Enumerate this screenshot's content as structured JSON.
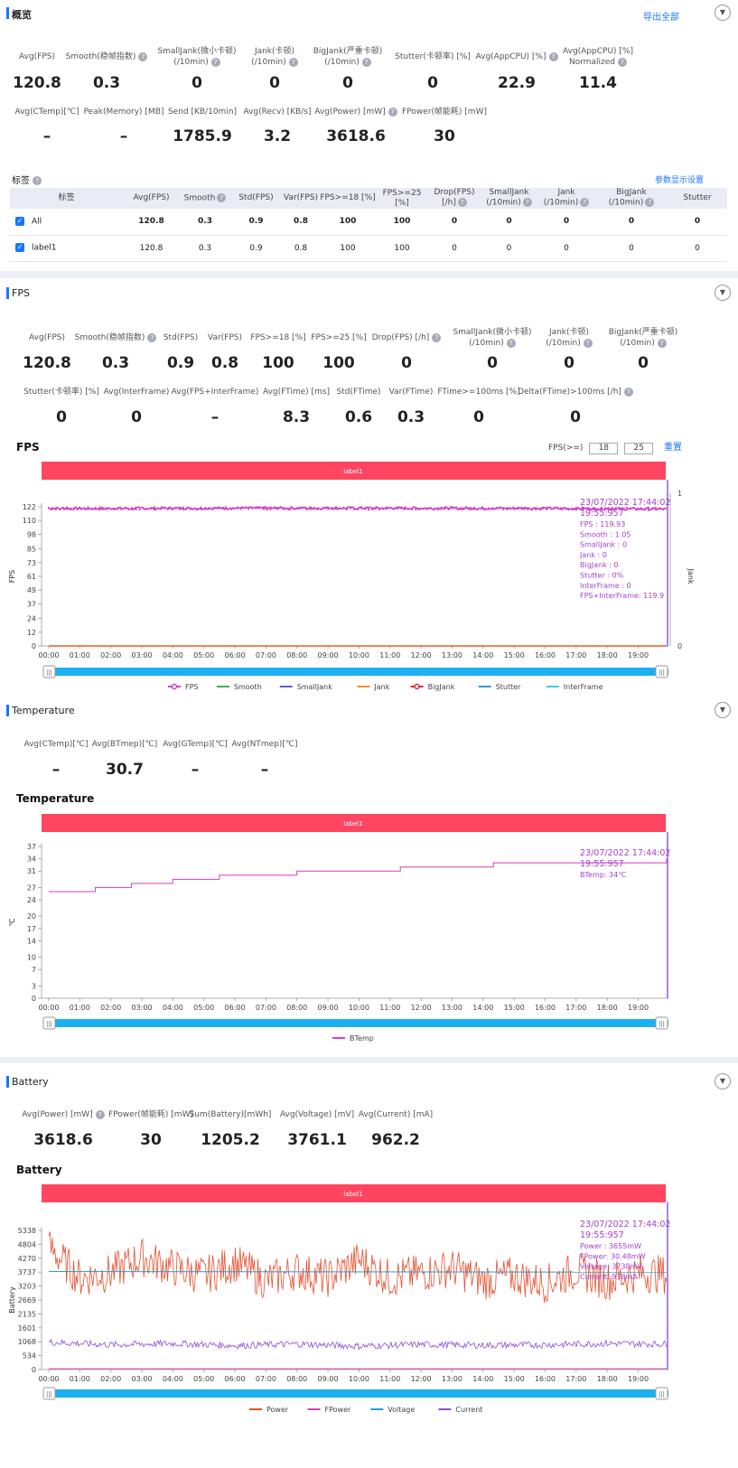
{
  "overview": {
    "title": "概览",
    "export_label": "导出全部",
    "metrics_row1": [
      {
        "label": "Avg(FPS)",
        "value": "120.8",
        "help": false
      },
      {
        "label": "Smooth(稳帧指数)",
        "value": "0.3",
        "help": true
      },
      {
        "label": "SmallJank(微小卡顿)\n(/10min)",
        "value": "0",
        "help": true
      },
      {
        "label": "Jank(卡顿)\n(/10min)",
        "value": "0",
        "help": true
      },
      {
        "label": "BigJank(严重卡顿)\n(/10min)",
        "value": "0",
        "help": true
      },
      {
        "label": "Stutter(卡顿率) [%]",
        "value": "0",
        "help": false
      },
      {
        "label": "Avg(AppCPU) [%]",
        "value": "22.9",
        "help": true
      },
      {
        "label": "Avg(AppCPU) [%]\nNormalized",
        "value": "11.4",
        "help": true
      }
    ],
    "metrics_row2": [
      {
        "label": "Avg(CTemp)[℃]",
        "value": "–",
        "help": false
      },
      {
        "label": "Peak(Memory) [MB]",
        "value": "–",
        "help": false
      },
      {
        "label": "Send [KB/10min]",
        "value": "1785.9",
        "help": false
      },
      {
        "label": "Avg(Recv) [KB/s]",
        "value": "3.2",
        "help": false
      },
      {
        "label": "Avg(Power) [mW]",
        "value": "3618.6",
        "help": true
      },
      {
        "label": "FPower(帧能耗) [mW]",
        "value": "30",
        "help": false
      }
    ]
  },
  "tags": {
    "title": "标签",
    "settings_label": "参数显示设置",
    "columns": [
      "标签",
      "Avg(FPS)",
      "Smooth",
      "Std(FPS)",
      "Var(FPS)",
      "FPS>=18 [%]",
      "FPS>=25 [%]",
      "Drop(FPS)\n[/h]",
      "SmallJank\n(/10min)",
      "Jank\n(/10min)",
      "BigJank\n(/10min)",
      "Stutter"
    ],
    "rows": [
      {
        "label": "All",
        "cells": [
          "120.8",
          "0.3",
          "0.9",
          "0.8",
          "100",
          "100",
          "0",
          "0",
          "0",
          "0",
          "0"
        ]
      },
      {
        "label": "label1",
        "cells": [
          "120.8",
          "0.3",
          "0.9",
          "0.8",
          "100",
          "100",
          "0",
          "0",
          "0",
          "0",
          "0"
        ]
      }
    ]
  },
  "fps": {
    "title": "FPS",
    "metrics_row1": [
      {
        "label": "Avg(FPS)",
        "value": "120.8",
        "help": false
      },
      {
        "label": "Smooth(稳帧指数)",
        "value": "0.3",
        "help": true
      },
      {
        "label": "Std(FPS)",
        "value": "0.9",
        "help": false
      },
      {
        "label": "Var(FPS)",
        "value": "0.8",
        "help": false
      },
      {
        "label": "FPS>=18 [%]",
        "value": "100",
        "help": false
      },
      {
        "label": "FPS>=25 [%]",
        "value": "100",
        "help": false
      },
      {
        "label": "Drop(FPS) [/h]",
        "value": "0",
        "help": true
      },
      {
        "label": "SmallJank(微小卡顿)\n(/10min)",
        "value": "0",
        "help": true
      },
      {
        "label": "Jank(卡顿)\n(/10min)",
        "value": "0",
        "help": true
      },
      {
        "label": "BigJank(严重卡顿)\n(/10min)",
        "value": "0",
        "help": true
      }
    ],
    "metrics_row2": [
      {
        "label": "Stutter(卡顿率) [%]",
        "value": "0",
        "help": false
      },
      {
        "label": "Avg(InterFrame)",
        "value": "0",
        "help": false
      },
      {
        "label": "Avg(FPS+InterFrame)",
        "value": "–",
        "help": false
      },
      {
        "label": "Avg(FTime) [ms]",
        "value": "8.3",
        "help": false
      },
      {
        "label": "Std(FTime)",
        "value": "0.6",
        "help": false
      },
      {
        "label": "Var(FTime)",
        "value": "0.3",
        "help": false
      },
      {
        "label": "FTime>=100ms [%]",
        "value": "0",
        "help": false
      },
      {
        "label": "Delta(FTime)>100ms [/h]",
        "value": "0",
        "help": true
      }
    ],
    "chart_title": "FPS",
    "filter_label": "FPS(>=)",
    "filter_values": [
      "18",
      "25"
    ],
    "reset_label": "重置",
    "band_label": "label1",
    "y_label": "FPS",
    "y2_label": "Jank",
    "y2_ticks": [
      "1",
      "0"
    ],
    "tooltip": [
      "23/07/2022 17:44:02",
      "19:55:957",
      "FPS          : 119.93",
      "Smooth       : 1.05",
      "SmallJank    : 0",
      "Jank         : 0",
      "BigJank      : 0",
      "Stutter      : 0%",
      "InterFrame   : 0",
      "FPS+InterFrame: 119.9"
    ],
    "legend": [
      {
        "name": "FPS",
        "color": "#d63fbe",
        "marker": true
      },
      {
        "name": "Smooth",
        "color": "#3cb44b",
        "marker": false
      },
      {
        "name": "SmallJank",
        "color": "#5b5fd6",
        "marker": false
      },
      {
        "name": "Jank",
        "color": "#f28e2b",
        "marker": false
      },
      {
        "name": "BigJank",
        "color": "#e0282e",
        "marker": true
      },
      {
        "name": "Stutter",
        "color": "#2e9bd6",
        "marker": false
      },
      {
        "name": "InterFrame",
        "color": "#3ed1d8",
        "marker": false
      }
    ]
  },
  "temperature": {
    "title": "Temperature",
    "metrics": [
      {
        "label": "Avg(CTemp)[℃]",
        "value": "–",
        "help": false
      },
      {
        "label": "Avg(BTmep)[℃]",
        "value": "30.7",
        "help": false
      },
      {
        "label": "Avg(GTemp)[℃]",
        "value": "–",
        "help": false
      },
      {
        "label": "Avg(NTmep)[℃]",
        "value": "–",
        "help": false
      }
    ],
    "chart_title": "Temperature",
    "band_label": "label1",
    "y_label": "℃",
    "tooltip": [
      "23/07/2022 17:44:02",
      "19:55:957",
      "BTemp: 34℃"
    ],
    "legend": [
      {
        "name": "BTemp",
        "color": "#d63fbe"
      }
    ]
  },
  "battery": {
    "title": "Battery",
    "metrics": [
      {
        "label": "Avg(Power) [mW]",
        "value": "3618.6",
        "help": true
      },
      {
        "label": "FPower(帧能耗) [mW]",
        "value": "30",
        "help": false
      },
      {
        "label": "Sum(Battery)[mWh]",
        "value": "1205.2",
        "help": false
      },
      {
        "label": "Avg(Voltage) [mV]",
        "value": "3761.1",
        "help": false
      },
      {
        "label": "Avg(Current) [mA]",
        "value": "962.2",
        "help": false
      }
    ],
    "chart_title": "Battery",
    "band_label": "label1",
    "y_label": "Battery",
    "tooltip": [
      "23/07/2022 17:44:02",
      "19:55:957",
      "Power   : 3655mW",
      "FPower: 30.48mW",
      "Voltage: 3738mV",
      "Current: 978mA"
    ],
    "legend": [
      {
        "name": "Power",
        "color": "#e8502e"
      },
      {
        "name": "FPower",
        "color": "#d63fbe"
      },
      {
        "name": "Voltage",
        "color": "#2e9bd6"
      },
      {
        "name": "Current",
        "color": "#8a4fd8"
      }
    ]
  },
  "colors": {
    "accent": "#1677ff",
    "band": "#ff4560",
    "slider": "#1cb0f0"
  },
  "chart_data": [
    {
      "type": "line",
      "title": "FPS",
      "ylabel": "FPS",
      "x_ticks": [
        "00:00",
        "01:00",
        "02:00",
        "03:00",
        "04:00",
        "05:00",
        "06:00",
        "07:00",
        "08:00",
        "09:00",
        "10:00",
        "11:00",
        "12:00",
        "13:00",
        "14:00",
        "15:00",
        "16:00",
        "17:00",
        "18:00",
        "19:00"
      ],
      "y_ticks": [
        0,
        12,
        24,
        37,
        49,
        61,
        73,
        85,
        98,
        110,
        122
      ],
      "ylim": [
        0,
        122
      ],
      "y2_ticks": [
        0,
        1
      ],
      "series": [
        {
          "name": "FPS",
          "x": [
            "00:00",
            "05:00",
            "10:00",
            "15:00",
            "19:55"
          ],
          "values": [
            120.5,
            120.8,
            120.9,
            120.7,
            119.9
          ]
        },
        {
          "name": "Jank",
          "x": [
            "00:00",
            "19:55"
          ],
          "values": [
            0,
            0
          ]
        },
        {
          "name": "BigJank",
          "x": [
            "00:00",
            "19:55"
          ],
          "values": [
            0,
            0
          ]
        }
      ]
    },
    {
      "type": "line",
      "title": "Temperature",
      "ylabel": "℃",
      "x_ticks": [
        "00:00",
        "01:00",
        "02:00",
        "03:00",
        "04:00",
        "05:00",
        "06:00",
        "07:00",
        "08:00",
        "09:00",
        "10:00",
        "11:00",
        "12:00",
        "13:00",
        "14:00",
        "15:00",
        "16:00",
        "17:00",
        "18:00",
        "19:00"
      ],
      "y_ticks": [
        0,
        3,
        7,
        10,
        14,
        17,
        20,
        24,
        27,
        31,
        34,
        37
      ],
      "ylim": [
        0,
        37
      ],
      "series": [
        {
          "name": "BTemp",
          "x": [
            "00:00",
            "01:30",
            "02:40",
            "04:00",
            "05:30",
            "08:00",
            "11:20",
            "14:20",
            "19:55"
          ],
          "values": [
            26,
            27,
            28,
            29,
            30,
            31,
            32,
            33,
            34
          ]
        }
      ]
    },
    {
      "type": "line",
      "title": "Battery",
      "ylabel": "Battery",
      "x_ticks": [
        "00:00",
        "01:00",
        "02:00",
        "03:00",
        "04:00",
        "05:00",
        "06:00",
        "07:00",
        "08:00",
        "09:00",
        "10:00",
        "11:00",
        "12:00",
        "13:00",
        "14:00",
        "15:00",
        "16:00",
        "17:00",
        "18:00",
        "19:00"
      ],
      "y_ticks": [
        0,
        534,
        1068,
        1601,
        2135,
        2669,
        3203,
        3737,
        4270,
        4804,
        5338
      ],
      "ylim": [
        0,
        5338
      ],
      "series": [
        {
          "name": "Power",
          "x": [
            "00:00",
            "01:00",
            "02:00",
            "03:00",
            "04:00",
            "05:00",
            "06:00",
            "07:00",
            "08:00",
            "09:00",
            "10:00",
            "11:00",
            "12:00",
            "13:00",
            "14:00",
            "15:00",
            "16:00",
            "17:00",
            "18:00",
            "19:00",
            "19:55"
          ],
          "values": [
            4700,
            3500,
            3700,
            4300,
            3900,
            3600,
            4100,
            3400,
            3800,
            3500,
            4200,
            3500,
            3700,
            3900,
            3400,
            3600,
            3300,
            3800,
            3400,
            3700,
            3655
          ]
        },
        {
          "name": "FPower",
          "x": [
            "00:00",
            "19:55"
          ],
          "values": [
            30,
            30
          ]
        },
        {
          "name": "Voltage",
          "x": [
            "00:00",
            "19:55"
          ],
          "values": [
            3760,
            3738
          ]
        },
        {
          "name": "Current",
          "x": [
            "00:00",
            "02:00",
            "04:00",
            "06:00",
            "08:00",
            "10:00",
            "12:00",
            "14:00",
            "16:00",
            "18:00",
            "19:55"
          ],
          "values": [
            1050,
            950,
            1000,
            920,
            980,
            900,
            960,
            930,
            950,
            1000,
            978
          ]
        }
      ]
    }
  ]
}
